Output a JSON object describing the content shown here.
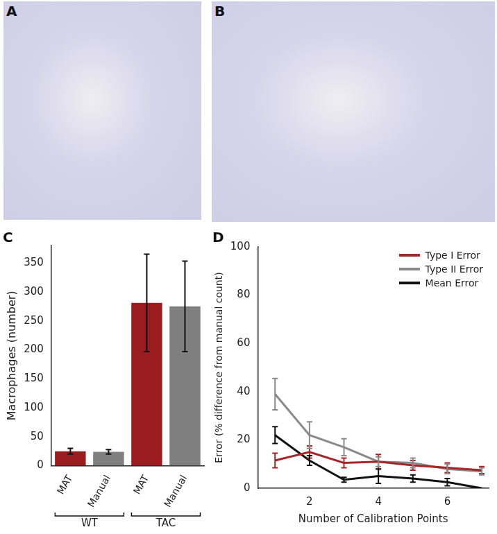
{
  "images": [
    {
      "panel": "A"
    },
    {
      "panel": "B"
    }
  ],
  "chart_data": [
    {
      "panel": "C",
      "type": "bar",
      "y_label": "Macrophages (number)",
      "groups": [
        {
          "name": "WT",
          "categories": [
            "MAT",
            "Manual"
          ]
        },
        {
          "name": "TAC",
          "categories": [
            "MAT",
            "Manual"
          ]
        }
      ],
      "values": [
        25,
        24,
        281,
        275
      ],
      "errors": [
        5,
        4,
        84,
        78
      ],
      "colors": [
        "#9b1c1f",
        "#7f7f7f",
        "#9b1c1f",
        "#7f7f7f"
      ],
      "ylim": [
        0,
        380
      ],
      "yticks": [
        0,
        50,
        100,
        150,
        200,
        250,
        300,
        350
      ],
      "grid": false
    },
    {
      "panel": "D",
      "type": "line",
      "x_label": "Number of Calibration Points",
      "y_label": "Error (% difference from manual count)",
      "x": [
        1,
        2,
        3,
        4,
        5,
        6,
        7
      ],
      "series": [
        {
          "name": "Type I Error",
          "color": "#a3262a",
          "values": [
            11.5,
            15,
            10.5,
            11,
            9.5,
            8.5,
            7.5
          ],
          "errors": [
            3,
            2.5,
            2,
            3,
            2,
            2,
            1.5
          ]
        },
        {
          "name": "Type II Error",
          "color": "#8a8a8a",
          "values": [
            39,
            22,
            17,
            11,
            10.5,
            8,
            7
          ],
          "errors": [
            6.5,
            5.5,
            3.5,
            2,
            2,
            2,
            1.5
          ]
        },
        {
          "name": "Mean Error",
          "color": "#111111",
          "values": [
            22,
            11.5,
            3.5,
            5,
            4,
            2.5,
            0
          ],
          "errors": [
            3.5,
            2,
            1,
            3,
            1.5,
            1.5,
            0
          ]
        }
      ],
      "xlim": [
        0.5,
        7.2
      ],
      "xticks": [
        2,
        4,
        6
      ],
      "ylim": [
        0,
        100
      ],
      "yticks": [
        0,
        20,
        40,
        60,
        80,
        100
      ],
      "grid": false,
      "legend": "upper right"
    }
  ]
}
